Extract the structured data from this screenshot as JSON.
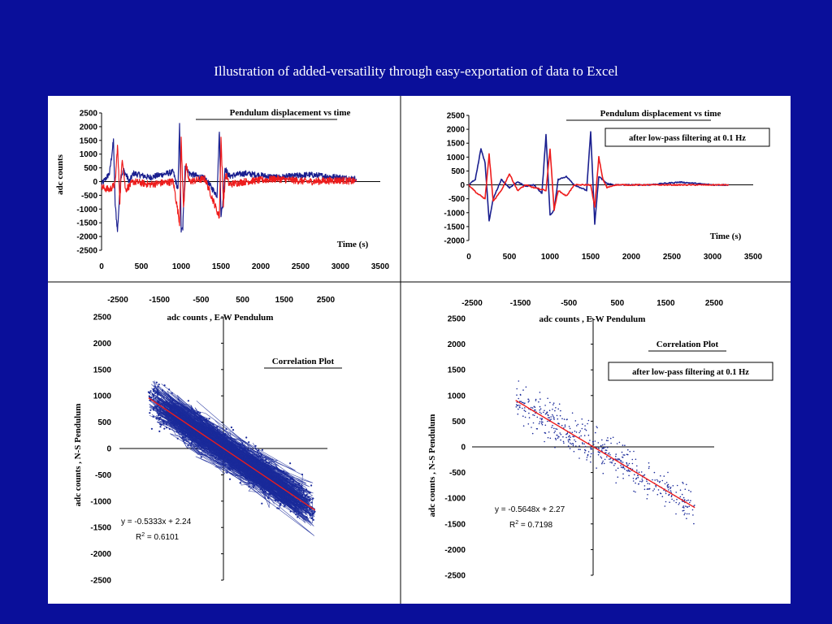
{
  "slide": {
    "title": "Illustration of added-versatility through easy-exportation of data to Excel"
  },
  "colors": {
    "background": "#0a0f9a",
    "ew_series": "#1a1f8f",
    "ns_series": "#ee1c1c",
    "trend": "#ee1c1c",
    "scatter": "#1a2a9a"
  },
  "chart_data": [
    {
      "type": "line",
      "title": "Pendulum displacement vs time",
      "subtitle": "",
      "xlabel": "Time (s)",
      "ylabel": "adc counts",
      "xlim": [
        0,
        3500
      ],
      "ylim": [
        -2500,
        2500
      ],
      "xticks": [
        "0",
        "500",
        "1000",
        "1500",
        "2000",
        "2500",
        "3000",
        "3500"
      ],
      "yticks": [
        "2500",
        "2000",
        "1500",
        "1000",
        "500",
        "0",
        "-500",
        "-1000",
        "-1500",
        "-2000",
        "-2500"
      ],
      "series": [
        {
          "color": "#1a1f8f",
          "x": [
            0,
            100,
            150,
            170,
            200,
            240,
            280,
            350,
            400,
            600,
            900,
            960,
            980,
            1000,
            1020,
            1050,
            1100,
            1200,
            1300,
            1450,
            1480,
            1500,
            1520,
            1550,
            1600,
            1800,
            2200,
            2600,
            3000,
            3200
          ],
          "y": [
            -100,
            300,
            1500,
            -800,
            -1800,
            200,
            400,
            0,
            300,
            150,
            350,
            -300,
            2200,
            -1800,
            -1700,
            600,
            300,
            200,
            100,
            -500,
            1900,
            -1200,
            -900,
            500,
            200,
            300,
            150,
            250,
            150,
            100
          ]
        },
        {
          "color": "#ee1c1c",
          "x": [
            0,
            100,
            170,
            200,
            230,
            260,
            300,
            400,
            600,
            900,
            980,
            1000,
            1030,
            1060,
            1100,
            1300,
            1480,
            1500,
            1530,
            1560,
            1600,
            1800,
            2200,
            2600,
            3000,
            3200
          ],
          "y": [
            -200,
            -300,
            -100,
            1300,
            -700,
            900,
            -300,
            0,
            -100,
            0,
            -1500,
            1500,
            -1000,
            600,
            0,
            100,
            -1300,
            1600,
            -800,
            300,
            -100,
            0,
            100,
            0,
            50,
            0
          ]
        }
      ]
    },
    {
      "type": "line",
      "title": "Pendulum displacement vs time",
      "subtitle": "after low-pass filtering at  0.1 Hz",
      "xlabel": "Time (s)",
      "ylabel": "",
      "xlim": [
        0,
        3500
      ],
      "ylim": [
        -2000,
        2500
      ],
      "xticks": [
        "0",
        "500",
        "1000",
        "1500",
        "2000",
        "2500",
        "3000",
        "3500"
      ],
      "yticks": [
        "2500",
        "2000",
        "1500",
        "1000",
        "500",
        "0",
        "-500",
        "-1000",
        "-1500",
        "-2000"
      ],
      "series": [
        {
          "color": "#1a1f8f",
          "x": [
            0,
            80,
            150,
            200,
            250,
            300,
            400,
            500,
            600,
            700,
            800,
            900,
            950,
            1000,
            1050,
            1100,
            1200,
            1300,
            1450,
            1500,
            1550,
            1600,
            1700,
            1800,
            2200,
            2600,
            3000,
            3200
          ],
          "y": [
            0,
            200,
            1300,
            800,
            -1300,
            -500,
            200,
            -100,
            100,
            -50,
            0,
            -300,
            1800,
            -1100,
            -900,
            200,
            300,
            0,
            -200,
            1900,
            -1400,
            300,
            50,
            0,
            0,
            100,
            0,
            0
          ],
          "note": ""
        },
        {
          "color": "#ee1c1c",
          "x": [
            0,
            100,
            200,
            250,
            300,
            400,
            500,
            600,
            700,
            800,
            950,
            1000,
            1050,
            1100,
            1200,
            1300,
            1500,
            1550,
            1600,
            1650,
            1700,
            1800,
            2200,
            2600,
            3000,
            3200
          ],
          "y": [
            0,
            -300,
            -500,
            1100,
            -600,
            -200,
            400,
            -200,
            0,
            -100,
            -200,
            1300,
            -900,
            -200,
            -400,
            0,
            0,
            -800,
            1000,
            200,
            -100,
            0,
            0,
            0,
            0,
            0
          ]
        }
      ]
    },
    {
      "type": "scatter",
      "title": "Correlation Plot",
      "subtitle": "",
      "xlabel": "adc counts , E-W Pendulum",
      "ylabel": "adc counts , N-S Pendulum",
      "xlim": [
        -2500,
        2500
      ],
      "ylim": [
        -2500,
        2500
      ],
      "xticks": [
        "-2500",
        "-1500",
        "-500",
        "500",
        "1500",
        "2500"
      ],
      "yticks": [
        "2500",
        "2000",
        "1500",
        "1000",
        "500",
        "0",
        "-500",
        "-1000",
        "-1500",
        "-2000",
        "-2500"
      ],
      "trendline": {
        "slope": -0.5333,
        "intercept": 2.24,
        "x_range": [
          -1800,
          2200
        ]
      },
      "equation": "y = -0.5333x + 2.24",
      "r2_label": "R",
      "r2_sup": "2",
      "r2_value": " = 0.6101",
      "point_cloud": {
        "x_range": [
          -1800,
          2200
        ],
        "spread": 350,
        "count": 700
      }
    },
    {
      "type": "scatter",
      "title": "Correlation Plot",
      "subtitle": "after low-pass filtering at  0.1 Hz",
      "xlabel": "adc counts , E-W Pendulum",
      "ylabel": "adc counts , N-S Pendulum",
      "xlim": [
        -2500,
        2500
      ],
      "ylim": [
        -2500,
        2500
      ],
      "xticks": [
        "-2500",
        "-1500",
        "-500",
        "500",
        "1500",
        "2500"
      ],
      "yticks": [
        "2500",
        "2000",
        "1500",
        "1000",
        "500",
        "0",
        "-500",
        "-1000",
        "-1500",
        "-2000",
        "-2500"
      ],
      "trendline": {
        "slope": -0.5648,
        "intercept": 2.27,
        "x_range": [
          -1600,
          2100
        ]
      },
      "equation": "y = -0.5648x + 2.27",
      "r2_label": "R",
      "r2_sup": "2",
      "r2_value": " = 0.7198",
      "point_cloud": {
        "x_range": [
          -1600,
          2100
        ],
        "spread": 230,
        "count": 500
      }
    }
  ]
}
